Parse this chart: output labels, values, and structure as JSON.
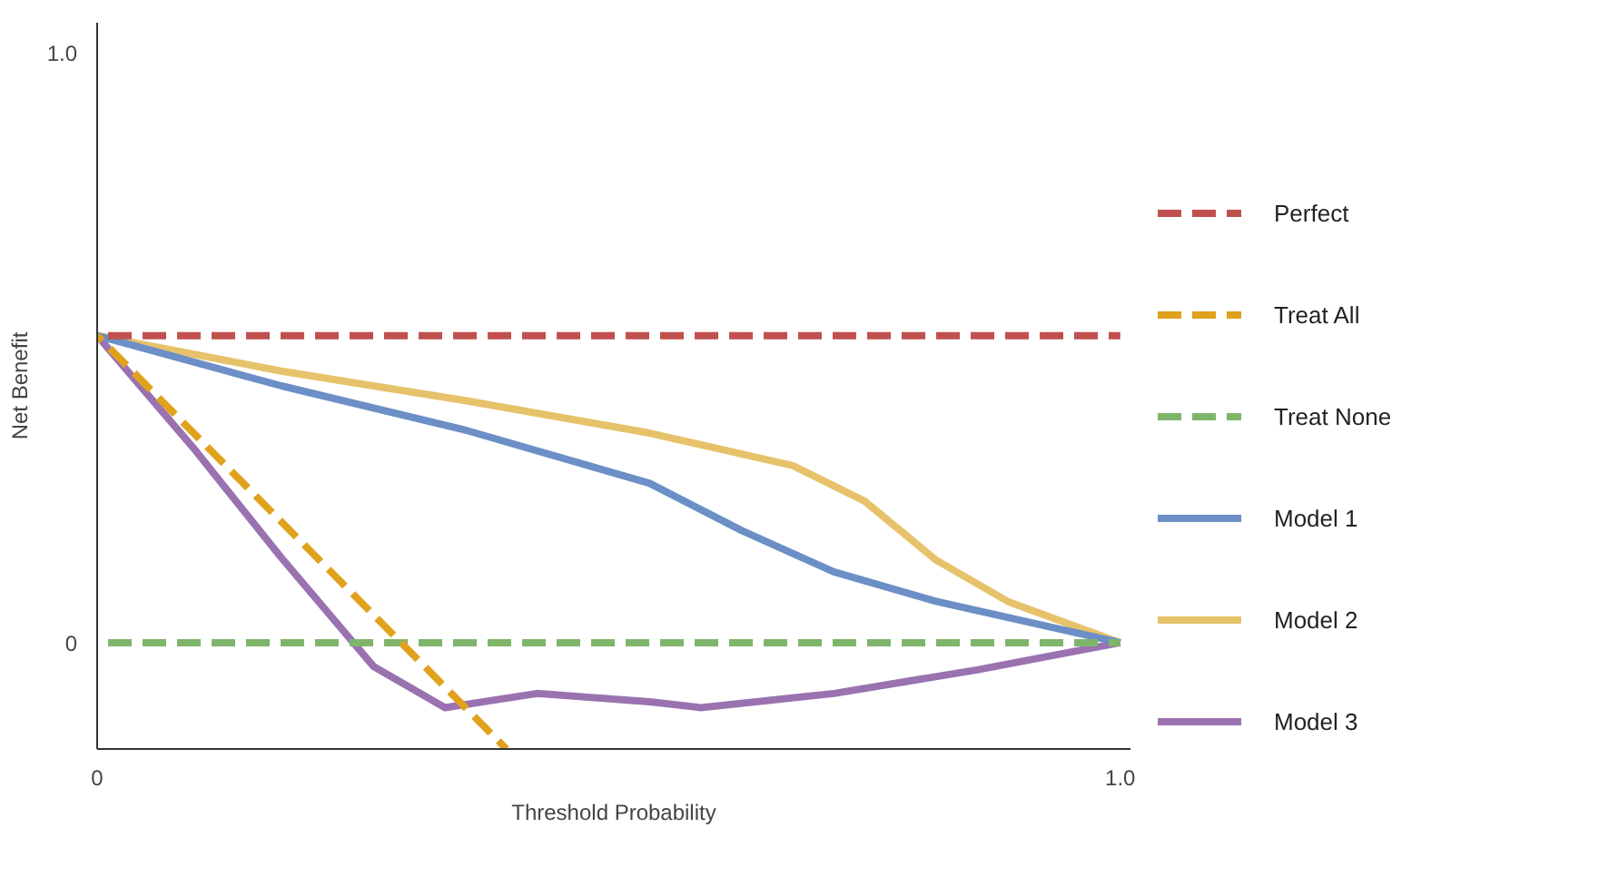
{
  "chart_data": {
    "type": "line",
    "xlabel": "Threshold Probability",
    "ylabel": "Net Benefit",
    "xlim": [
      0,
      1.01
    ],
    "ylim": [
      -0.18,
      1.05
    ],
    "xticks": [
      0,
      {
        "value": 1,
        "label": "1.0"
      }
    ],
    "yticks": [
      0,
      {
        "value": 1,
        "label": "1.0"
      }
    ],
    "grid": false,
    "legend": "right",
    "marker": "none",
    "series": [
      {
        "name": "Perfect",
        "color": "#c0504d",
        "line_style": "dashed",
        "x": [
          0,
          1
        ],
        "values": [
          0.52,
          0.52
        ]
      },
      {
        "name": "Treat All",
        "color": "#e0a21c",
        "line_style": "dashed",
        "x": [
          0,
          0.4
        ],
        "values": [
          0.52,
          -0.18
        ]
      },
      {
        "name": "Treat None",
        "color": "#7fb56b",
        "line_style": "dashed",
        "x": [
          0,
          1
        ],
        "values": [
          0,
          0
        ]
      },
      {
        "name": "Model 1",
        "color": "#6b8fc6",
        "line_style": "solid",
        "x": [
          0,
          0.18,
          0.36,
          0.54,
          0.63,
          0.72,
          0.82,
          1
        ],
        "values": [
          0.52,
          0.435,
          0.36,
          0.27,
          0.19,
          0.12,
          0.07,
          0
        ]
      },
      {
        "name": "Model 2",
        "color": "#e6c26a",
        "line_style": "solid",
        "x": [
          0,
          0.18,
          0.36,
          0.54,
          0.68,
          0.75,
          0.82,
          0.89,
          1
        ],
        "values": [
          0.52,
          0.46,
          0.41,
          0.355,
          0.3,
          0.24,
          0.14,
          0.07,
          0
        ]
      },
      {
        "name": "Model 3",
        "color": "#9b72b0",
        "line_style": "solid",
        "x": [
          0,
          0.094,
          0.18,
          0.27,
          0.34,
          0.43,
          0.54,
          0.59,
          0.72,
          0.86,
          1
        ],
        "values": [
          0.52,
          0.33,
          0.144,
          -0.04,
          -0.11,
          -0.086,
          -0.1,
          -0.11,
          -0.086,
          -0.046,
          0
        ]
      }
    ]
  }
}
